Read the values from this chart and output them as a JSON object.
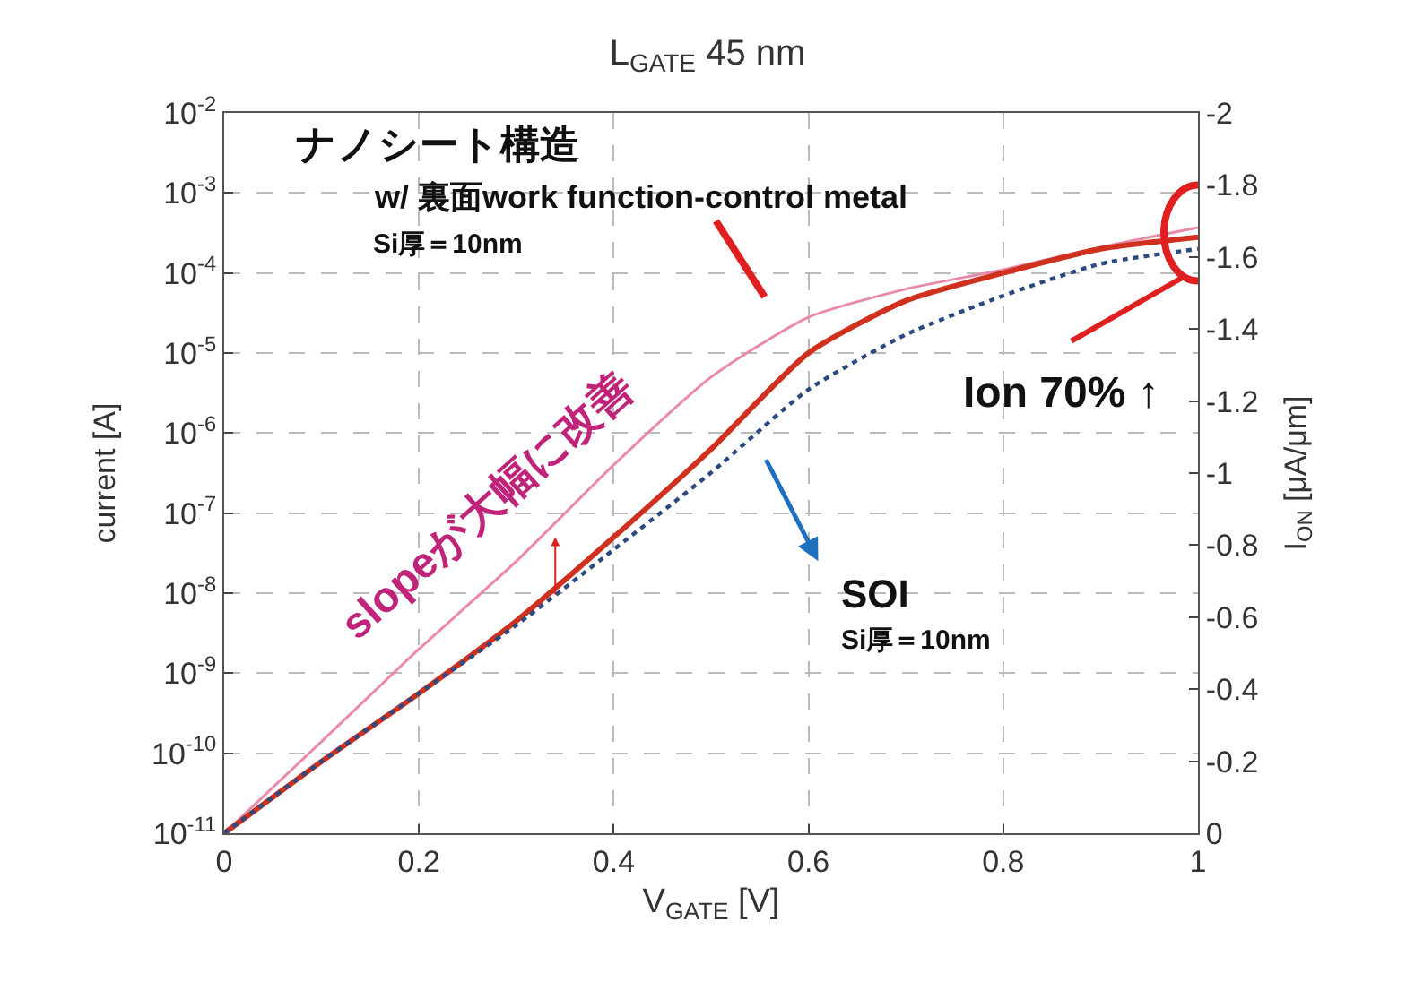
{
  "chart_data": {
    "type": "line",
    "title": "L$_{GATE}$ 45 nm",
    "xlabel": "V$_{GATE}$ [V]",
    "ylabel": "current [A]",
    "y2label": "I$_{ON}$ [μA/μm]",
    "x": [
      0,
      0.1,
      0.2,
      0.3,
      0.4,
      0.5,
      0.6,
      0.7,
      0.8,
      0.9,
      1.0
    ],
    "series": [
      {
        "color": "#e98aa8",
        "values": [
          1e-11,
          1.4e-10,
          2e-09,
          2.5e-08,
          4e-07,
          5e-06,
          2.8e-05,
          6.3e-05,
          0.00011,
          0.00021,
          0.00037
        ]
      },
      {
        "color": "#d0301e",
        "values": [
          1e-11,
          7.9e-11,
          5.6e-10,
          4.5e-09,
          5e-08,
          6.3e-07,
          1e-05,
          4.5e-05,
          0.0001,
          0.0002,
          0.00028
        ]
      },
      {
        "color": "#2a4a80",
        "line_style": "dotted",
        "values": [
          1e-11,
          7.9e-11,
          5.6e-10,
          4e-09,
          3.5e-08,
          3.2e-07,
          3.5e-06,
          1.7e-05,
          5.2e-05,
          0.00013,
          0.0002
        ]
      }
    ],
    "log": "y",
    "grid": true,
    "line_style": "solid",
    "marker": "none",
    "xlim": [
      0,
      1
    ],
    "xticks": [
      0,
      0.2,
      0.4,
      0.6,
      0.8,
      1
    ],
    "ylim": [
      1e-11,
      0.01
    ],
    "yticks": [
      {
        "value": 1e-11,
        "label": "10$^{-11}$"
      },
      {
        "value": 1e-10,
        "label": "10$^{-10}$"
      },
      {
        "value": 1e-09,
        "label": "10$^{-9}$"
      },
      {
        "value": 1e-08,
        "label": "10$^{-8}$"
      },
      {
        "value": 1e-07,
        "label": "10$^{-7}$"
      },
      {
        "value": 1e-06,
        "label": "10$^{-6}$"
      },
      {
        "value": 1e-05,
        "label": "10$^{-5}$"
      },
      {
        "value": 0.0001,
        "label": "10$^{-4}$"
      },
      {
        "value": 0.001,
        "label": "10$^{-3}$"
      },
      {
        "value": 0.01,
        "label": "10$^{-2}$"
      }
    ],
    "y2lim": [
      0,
      -2
    ],
    "y2ticks": [
      0,
      -0.2,
      -0.4,
      -0.6,
      -0.8,
      -1,
      -1.2,
      -1.4,
      -1.6,
      -1.8,
      -2
    ],
    "annotations": [
      "ナノシート構造",
      "w/ 裏面work function-control metal",
      "Si厚＝10nm",
      "slopeが大幅に改善",
      "Ion 70% ↑",
      "SOI",
      "Si厚＝10nm"
    ]
  }
}
